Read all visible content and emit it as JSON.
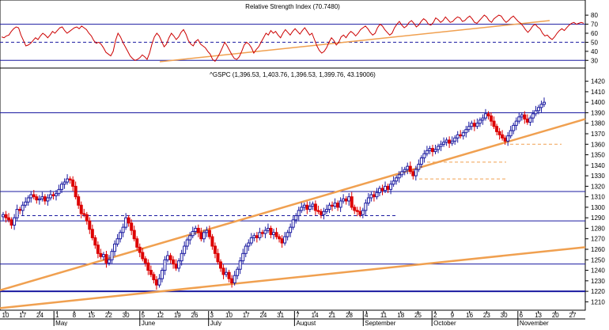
{
  "chart_data": [
    {
      "type": "line",
      "title": "Relative Strength Index (70.7480)",
      "y_ticks": [
        30,
        40,
        50,
        60,
        70,
        80
      ],
      "ylim": [
        25,
        88
      ],
      "reference_levels": [
        30,
        50,
        70
      ],
      "series": [
        {
          "values": [
            56,
            55,
            57,
            58,
            62,
            65,
            67,
            66,
            58,
            52,
            46,
            47,
            49,
            52,
            55,
            53,
            57,
            60,
            58,
            55,
            58,
            62,
            60,
            63,
            66,
            67,
            63,
            60,
            62,
            64,
            66,
            67,
            65,
            68,
            66,
            64,
            60,
            57,
            52,
            49,
            50,
            48,
            44,
            39,
            37,
            35,
            40,
            52,
            60,
            56,
            50,
            45,
            40,
            35,
            32,
            30,
            31,
            33,
            36,
            34,
            31,
            38,
            48,
            56,
            60,
            57,
            51,
            45,
            48,
            55,
            60,
            57,
            53,
            56,
            61,
            64,
            59,
            52,
            48,
            46,
            51,
            53,
            48,
            46,
            44,
            40,
            37,
            31,
            29,
            33,
            38,
            44,
            50,
            46,
            41,
            36,
            32,
            31,
            34,
            40,
            47,
            50,
            48,
            44,
            38,
            42,
            45,
            50,
            55,
            60,
            58,
            63,
            60,
            62,
            58,
            55,
            60,
            64,
            61,
            58,
            62,
            65,
            62,
            59,
            63,
            66,
            62,
            58,
            60,
            53,
            46,
            41,
            38,
            40,
            44,
            50,
            55,
            52,
            47,
            50,
            56,
            58,
            55,
            59,
            62,
            60,
            57,
            60,
            64,
            66,
            68,
            65,
            61,
            58,
            60,
            66,
            70,
            68,
            64,
            61,
            58,
            60,
            66,
            70,
            73,
            69,
            66,
            68,
            72,
            74,
            71,
            67,
            69,
            73,
            76,
            74,
            70,
            69,
            72,
            77,
            75,
            72,
            74,
            78,
            75,
            72,
            73,
            76,
            78,
            77,
            73,
            74,
            77,
            79,
            76,
            72,
            71,
            74,
            77,
            80,
            78,
            74,
            72,
            76,
            78,
            80,
            79,
            75,
            72,
            74,
            77,
            79,
            76,
            73,
            71,
            68,
            64,
            61,
            64,
            68,
            70,
            67,
            65,
            60,
            57,
            58,
            55,
            53,
            56,
            60,
            63,
            65,
            63,
            66,
            69,
            71,
            72,
            70,
            71,
            72,
            71
          ]
        }
      ]
    },
    {
      "type": "candlestick",
      "title": "^GSPC (1,396.53, 1,403.76, 1,396.53, 1,399.76, 43.19006)",
      "y_ticks": [
        1210,
        1220,
        1230,
        1240,
        1250,
        1260,
        1270,
        1280,
        1290,
        1300,
        1310,
        1320,
        1330,
        1340,
        1350,
        1360,
        1370,
        1380,
        1390,
        1400,
        1410,
        1420
      ],
      "ylim": [
        1202,
        1422
      ],
      "x_day_labels": [
        "10",
        "17",
        "24",
        "1",
        "8",
        "15",
        "22",
        "30",
        "5",
        "12",
        "19",
        "26",
        "3",
        "10",
        "17",
        "24",
        "31",
        "7",
        "14",
        "21",
        "28",
        "4",
        "11",
        "18",
        "25",
        "2",
        "9",
        "16",
        "23",
        "30",
        "6",
        "13",
        "20",
        "27"
      ],
      "x_month_labels": [
        "May",
        "June",
        "July",
        "August",
        "September",
        "October",
        "November"
      ],
      "horizontal_levels": [
        1220,
        1246,
        1287,
        1315,
        1390
      ],
      "dashed_levels": [
        1292
      ],
      "short_dashed_levels": [
        1327,
        1343,
        1360
      ],
      "trendlines": [
        {
          "from": [
            0,
            1221
          ],
          "to": [
            1,
            1384
          ]
        },
        {
          "from": [
            0,
            1204
          ],
          "to": [
            1,
            1262
          ]
        }
      ],
      "closes": [
        1293,
        1290,
        1288,
        1283,
        1290,
        1298,
        1297,
        1302,
        1305,
        1309,
        1312,
        1310,
        1307,
        1308,
        1310,
        1306,
        1309,
        1312,
        1311,
        1313,
        1317,
        1322,
        1324,
        1327,
        1326,
        1320,
        1310,
        1302,
        1294,
        1293,
        1287,
        1279,
        1271,
        1264,
        1256,
        1253,
        1255,
        1247,
        1250,
        1258,
        1265,
        1270,
        1276,
        1281,
        1290,
        1285,
        1278,
        1270,
        1262,
        1257,
        1251,
        1247,
        1240,
        1236,
        1231,
        1226,
        1232,
        1240,
        1250,
        1254,
        1250,
        1246,
        1242,
        1249,
        1256,
        1263,
        1269,
        1273,
        1277,
        1280,
        1276,
        1270,
        1276,
        1278,
        1272,
        1263,
        1256,
        1248,
        1242,
        1236,
        1238,
        1232,
        1228,
        1235,
        1241,
        1249,
        1256,
        1263,
        1266,
        1271,
        1273,
        1271,
        1276,
        1275,
        1278,
        1280,
        1274,
        1276,
        1272,
        1270,
        1266,
        1272,
        1276,
        1281,
        1288,
        1292,
        1297,
        1300,
        1302,
        1298,
        1301,
        1303,
        1297,
        1296,
        1293,
        1296,
        1298,
        1302,
        1301,
        1304,
        1300,
        1306,
        1308,
        1306,
        1310,
        1300,
        1297,
        1296,
        1293,
        1297,
        1304,
        1309,
        1312,
        1310,
        1314,
        1318,
        1316,
        1320,
        1317,
        1322,
        1325,
        1328,
        1331,
        1334,
        1336,
        1339,
        1334,
        1330,
        1336,
        1341,
        1347,
        1351,
        1354,
        1356,
        1353,
        1355,
        1358,
        1360,
        1362,
        1364,
        1361,
        1363,
        1366,
        1369,
        1368,
        1371,
        1374,
        1377,
        1380,
        1377,
        1380,
        1383,
        1385,
        1389,
        1387,
        1382,
        1377,
        1372,
        1369,
        1366,
        1363,
        1368,
        1373,
        1378,
        1382,
        1386,
        1388,
        1384,
        1381,
        1385,
        1389,
        1392,
        1395,
        1398,
        1400
      ]
    }
  ]
}
